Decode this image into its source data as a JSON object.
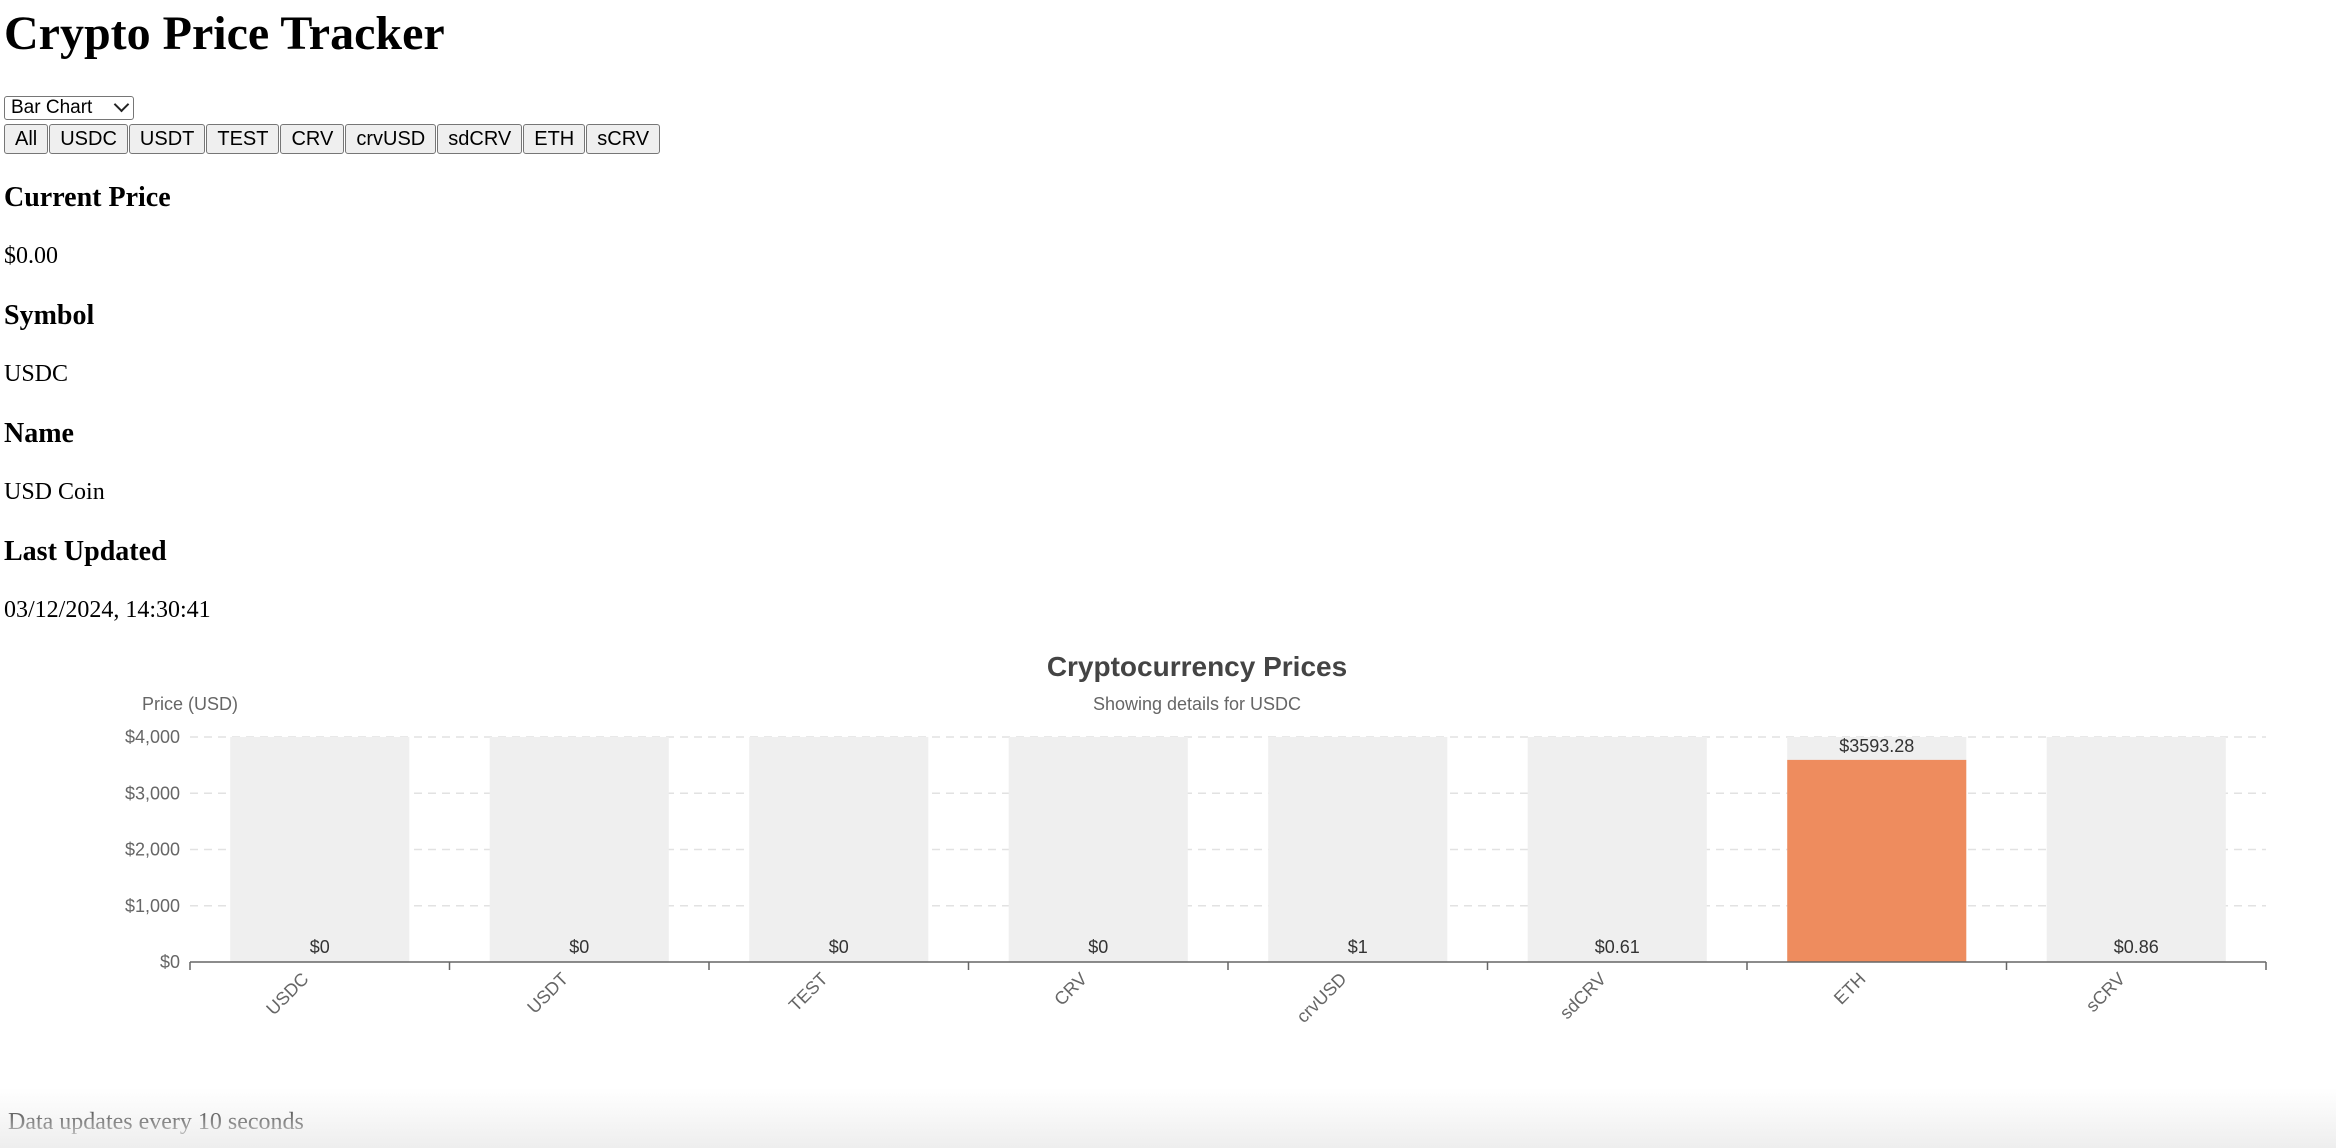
{
  "page": {
    "title": "Crypto Price Tracker"
  },
  "chart_type_select": {
    "selected": "Bar Chart"
  },
  "filters": [
    "All",
    "USDC",
    "USDT",
    "TEST",
    "CRV",
    "crvUSD",
    "sdCRV",
    "ETH",
    "sCRV"
  ],
  "details": {
    "price_label": "Current Price",
    "price_value": "$0.00",
    "symbol_label": "Symbol",
    "symbol_value": "USDC",
    "name_label": "Name",
    "name_value": "USD Coin",
    "updated_label": "Last Updated",
    "updated_value": "03/12/2024, 14:30:41"
  },
  "footer": {
    "text": "Data updates every 10 seconds"
  },
  "colors": {
    "highlight": "#ee8c5e",
    "background_bar": "#efefef",
    "axis": "#666666"
  },
  "chart_data": {
    "type": "bar",
    "title": "Cryptocurrency Prices",
    "subtitle": "Showing details for USDC",
    "ylabel": "Price (USD)",
    "xlabel": "",
    "ylim": [
      0,
      4000
    ],
    "yticks": [
      0,
      1000,
      2000,
      3000,
      4000
    ],
    "ytick_labels": [
      "$0",
      "$1,000",
      "$2,000",
      "$3,000",
      "$4,000"
    ],
    "categories": [
      "USDC",
      "USDT",
      "TEST",
      "CRV",
      "crvUSD",
      "sdCRV",
      "ETH",
      "sCRV"
    ],
    "values": [
      0,
      0,
      0,
      0,
      1,
      0.61,
      3593.28,
      0.86
    ],
    "data_labels": [
      "$0",
      "$0",
      "$0",
      "$0",
      "$1",
      "$0.61",
      "$3593.28",
      "$0.86"
    ],
    "highlighted": "ETH",
    "grid": true
  }
}
